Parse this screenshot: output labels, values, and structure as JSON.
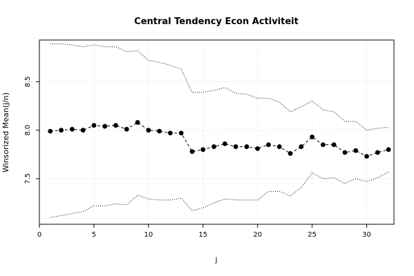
{
  "chart_data": {
    "type": "line",
    "title": "Central Tendency Econ Activiteit",
    "xlabel": "j",
    "ylabel": "Winsorized Mean(j/n)",
    "xlim": [
      0,
      32.5
    ],
    "ylim": [
      7.03,
      8.93
    ],
    "x_ticks": [
      0,
      5,
      10,
      15,
      20,
      25,
      30
    ],
    "y_ticks": [
      7.5,
      8.0,
      8.5
    ],
    "x_tick_labels": [
      "0",
      "5",
      "10",
      "15",
      "20",
      "25",
      "30"
    ],
    "y_tick_labels": [
      "7.5",
      "8.0",
      "8.5"
    ],
    "grid": true,
    "legend": "none",
    "x": [
      1,
      2,
      3,
      4,
      5,
      6,
      7,
      8,
      9,
      10,
      11,
      12,
      13,
      14,
      15,
      16,
      17,
      18,
      19,
      20,
      21,
      22,
      23,
      24,
      25,
      26,
      27,
      28,
      29,
      30,
      31,
      32
    ],
    "series": [
      {
        "style": "points-dashed",
        "values": [
          7.99,
          8.0,
          8.01,
          8.0,
          8.05,
          8.04,
          8.05,
          8.01,
          8.08,
          8.0,
          7.99,
          7.97,
          7.97,
          7.78,
          7.8,
          7.83,
          7.86,
          7.83,
          7.83,
          7.81,
          7.85,
          7.83,
          7.76,
          7.83,
          7.93,
          7.85,
          7.85,
          7.77,
          7.79,
          7.73,
          7.77,
          7.8
        ]
      },
      {
        "style": "dotted",
        "values": [
          8.89,
          8.89,
          8.88,
          8.86,
          8.88,
          8.86,
          8.86,
          8.81,
          8.82,
          8.72,
          8.7,
          8.67,
          8.63,
          8.39,
          8.39,
          8.41,
          8.44,
          8.38,
          8.37,
          8.33,
          8.33,
          8.29,
          8.19,
          8.24,
          8.3,
          8.21,
          8.19,
          8.09,
          8.09,
          8.0,
          8.02,
          8.03
        ]
      },
      {
        "style": "dotted",
        "values": [
          7.1,
          7.12,
          7.14,
          7.16,
          7.22,
          7.22,
          7.24,
          7.23,
          7.33,
          7.29,
          7.28,
          7.28,
          7.3,
          7.17,
          7.2,
          7.25,
          7.29,
          7.28,
          7.28,
          7.28,
          7.37,
          7.37,
          7.32,
          7.41,
          7.56,
          7.5,
          7.51,
          7.45,
          7.5,
          7.47,
          7.51,
          7.57
        ]
      }
    ]
  }
}
